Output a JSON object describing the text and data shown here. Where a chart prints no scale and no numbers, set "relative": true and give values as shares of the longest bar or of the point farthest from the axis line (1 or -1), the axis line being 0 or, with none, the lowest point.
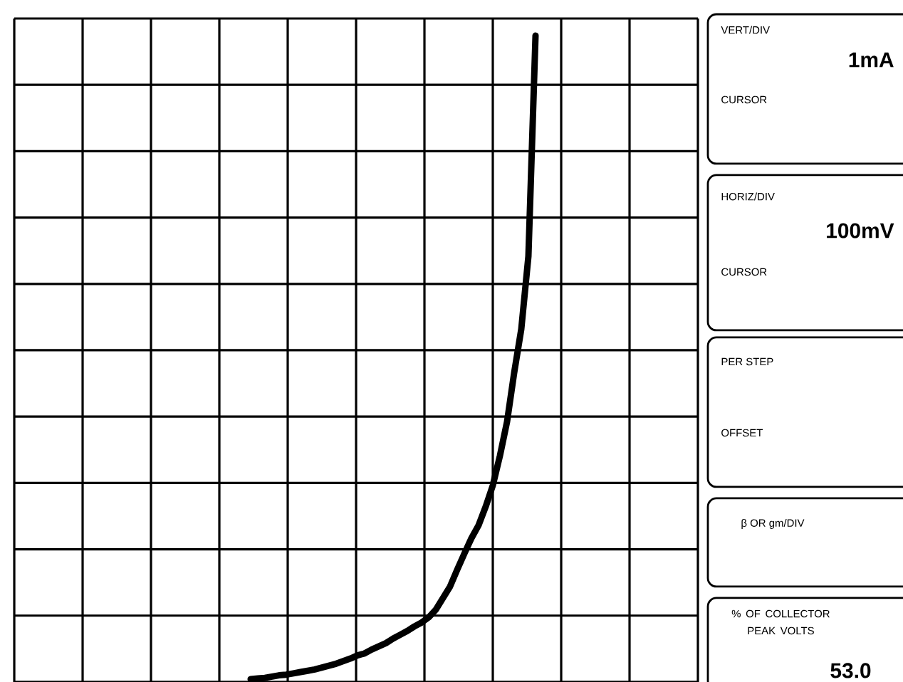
{
  "chart_data": {
    "type": "line",
    "relative": true,
    "grid": true,
    "color": "#000000",
    "categories": [
      null,
      null,
      null,
      null,
      null,
      null,
      null,
      null,
      null,
      null,
      null,
      null,
      null,
      null,
      null,
      null,
      null,
      null,
      null,
      null,
      null,
      null,
      null,
      null,
      null,
      null,
      null,
      null,
      null,
      null,
      null,
      null,
      null,
      null,
      null,
      null,
      null,
      null,
      null,
      null,
      null
    ],
    "values": [
      0,
      0.001,
      0.002,
      0.004,
      0.006,
      0.007,
      0.009,
      0.011,
      0.013,
      0.015,
      0.018,
      0.021,
      0.024,
      0.028,
      0.032,
      0.037,
      0.04,
      0.046,
      0.051,
      0.056,
      0.063,
      0.069,
      0.075,
      0.082,
      0.088,
      0.096,
      0.108,
      0.126,
      0.144,
      0.17,
      0.195,
      0.219,
      0.239,
      0.268,
      0.301,
      0.347,
      0.4,
      0.476,
      0.544,
      0.657,
      1
    ],
    "annotations": [
      "VERT/DIV",
      "1mA",
      "CURSOR",
      "HORIZ/DIV",
      "100mV",
      "CURSOR",
      "PER STEP",
      "OFFSET",
      "β OR gm/DIV",
      "% OF COLLECTOR PEAK VOLTS",
      "53.0"
    ]
  }
}
